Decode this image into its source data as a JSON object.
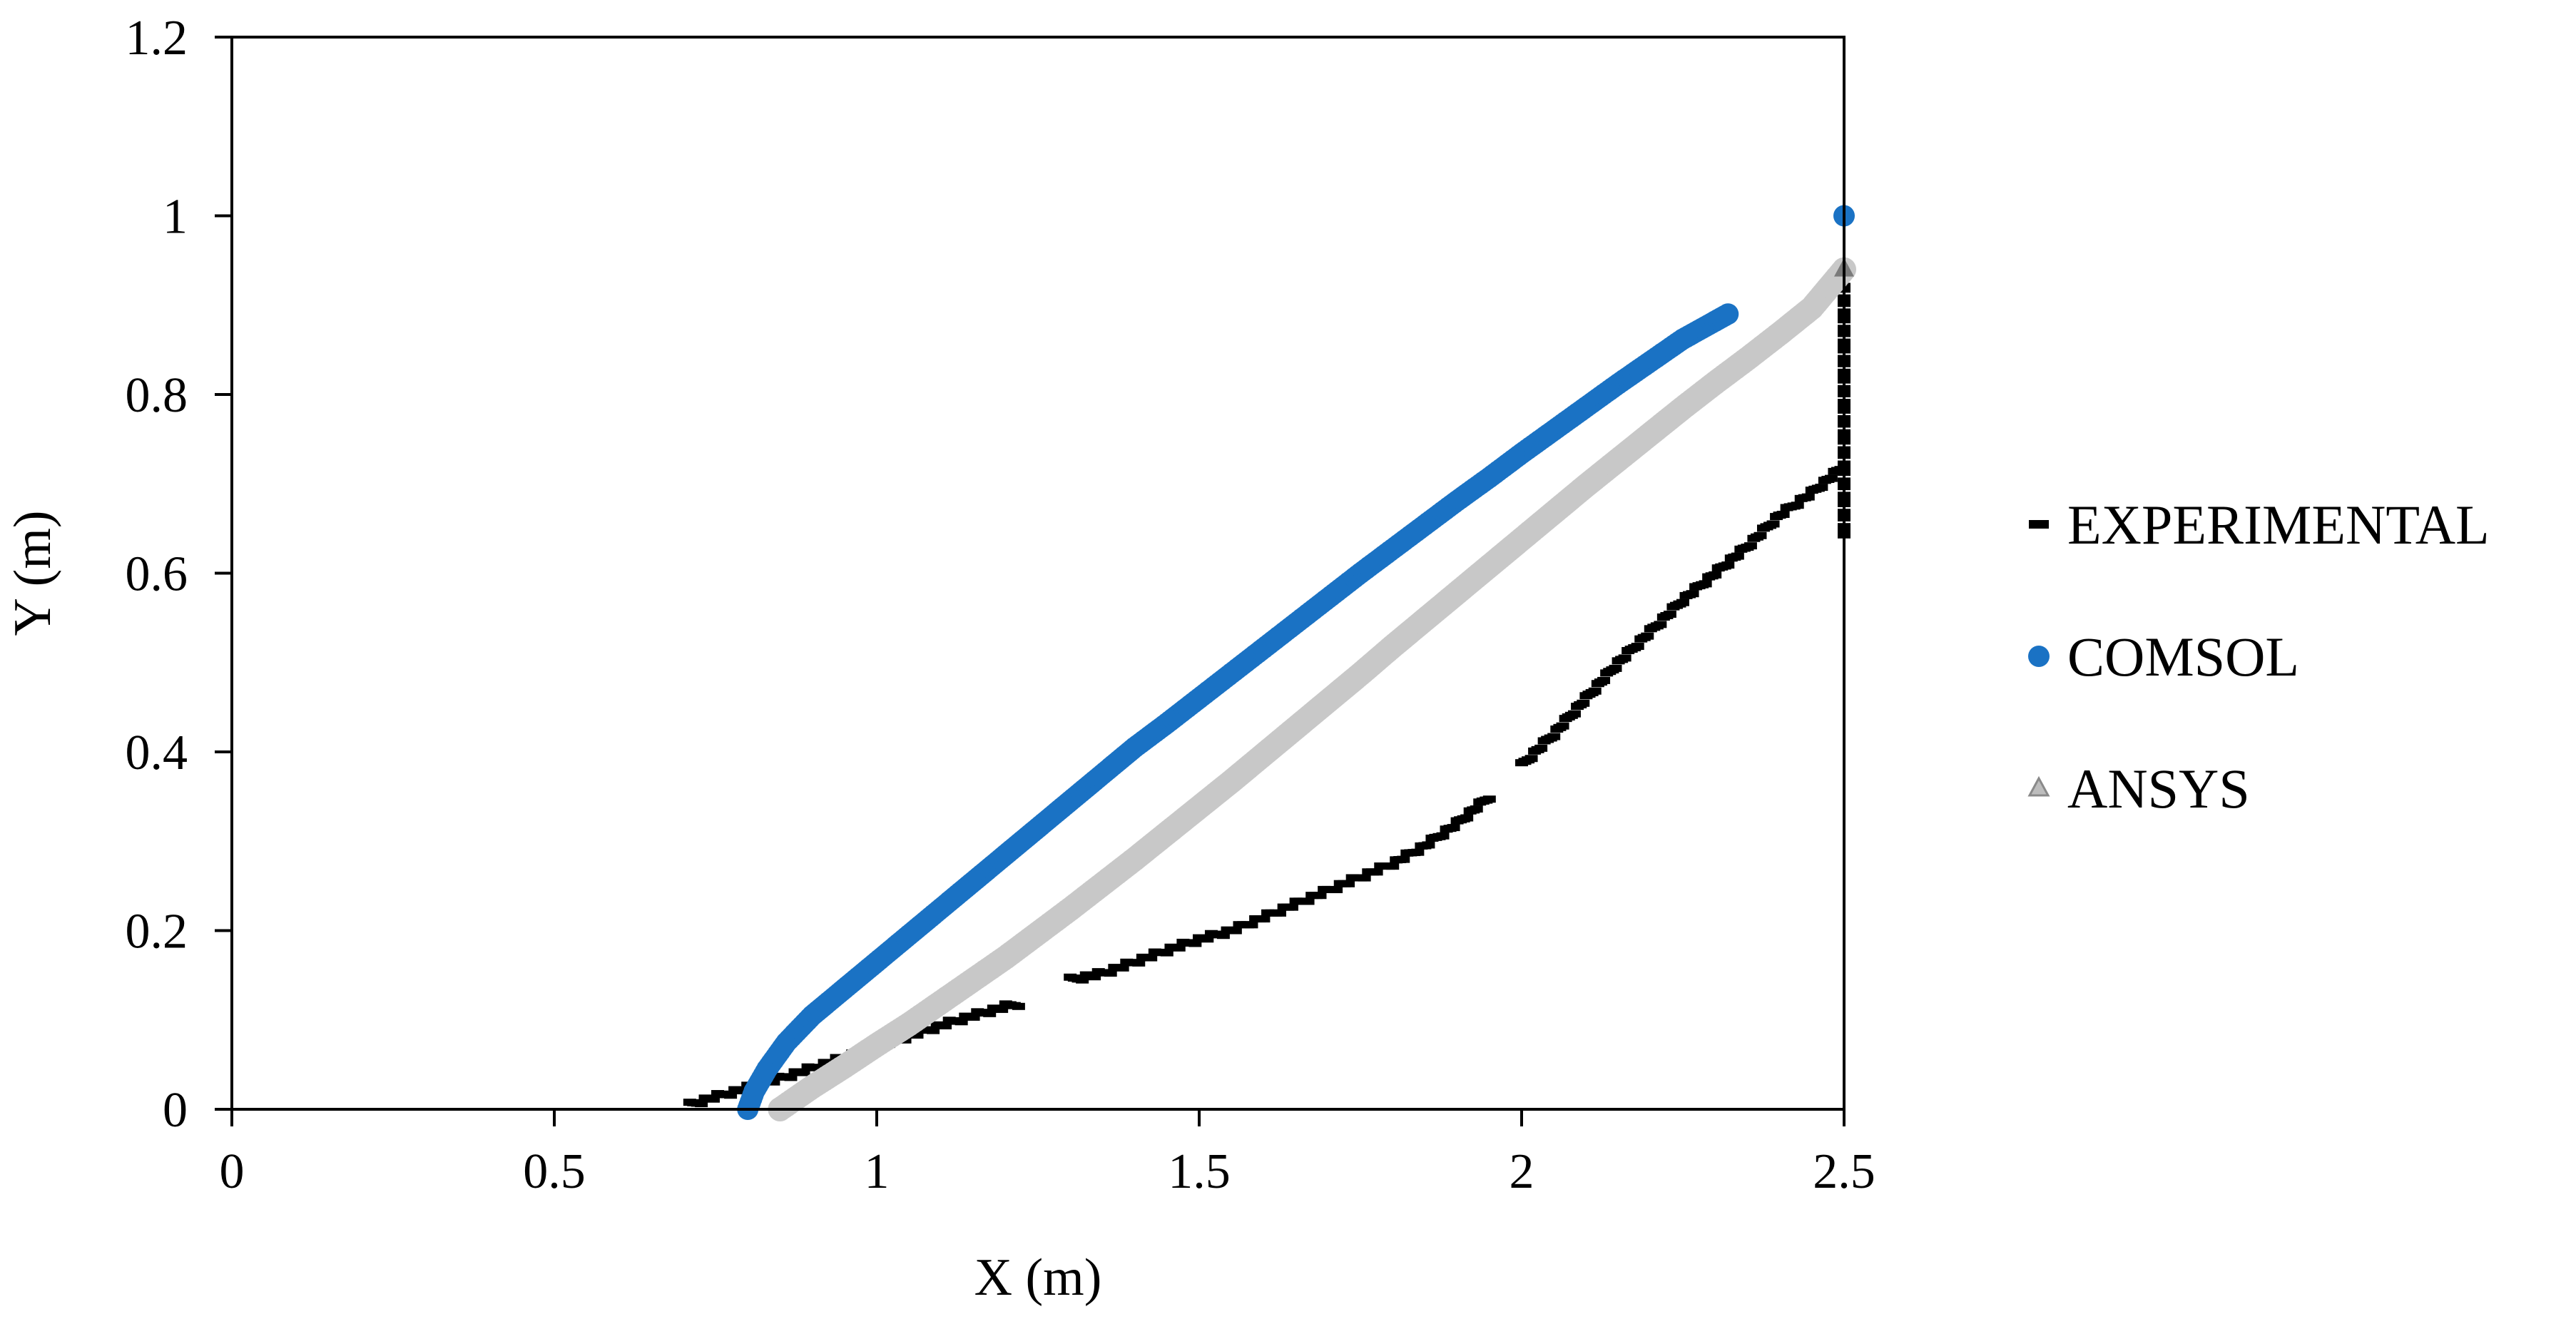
{
  "chart_data": {
    "type": "scatter",
    "xlabel": "X (m)",
    "ylabel": "Y (m)",
    "xlim": [
      0,
      2.5
    ],
    "ylim": [
      0,
      1.2
    ],
    "xticks": [
      0,
      0.5,
      1,
      1.5,
      2,
      2.5
    ],
    "yticks": [
      0,
      0.2,
      0.4,
      0.6,
      0.8,
      1,
      1.2
    ],
    "xtick_labels": [
      "0",
      "0.5",
      "1",
      "1.5",
      "2",
      "2.5"
    ],
    "ytick_labels": [
      "0",
      "0.2",
      "0.4",
      "0.6",
      "0.8",
      "1",
      "1.2"
    ],
    "grid": false,
    "legend_position": "right",
    "series": [
      {
        "name": "EXPERIMENTAL",
        "marker": "dash",
        "color": "#000000",
        "segments": [
          [
            [
              0.71,
              0.005
            ],
            [
              0.74,
              0.012
            ],
            [
              0.78,
              0.02
            ],
            [
              0.82,
              0.028
            ],
            [
              0.86,
              0.037
            ],
            [
              0.9,
              0.046
            ],
            [
              0.95,
              0.058
            ],
            [
              1.0,
              0.07
            ],
            [
              1.05,
              0.082
            ],
            [
              1.1,
              0.094
            ],
            [
              1.15,
              0.105
            ],
            [
              1.2,
              0.115
            ],
            [
              1.22,
              0.118
            ]
          ],
          [
            [
              1.3,
              0.145
            ],
            [
              1.35,
              0.152
            ],
            [
              1.4,
              0.165
            ],
            [
              1.45,
              0.178
            ],
            [
              1.5,
              0.19
            ],
            [
              1.55,
              0.2
            ],
            [
              1.6,
              0.215
            ],
            [
              1.65,
              0.23
            ],
            [
              1.7,
              0.245
            ],
            [
              1.75,
              0.26
            ],
            [
              1.8,
              0.275
            ],
            [
              1.85,
              0.295
            ],
            [
              1.9,
              0.32
            ],
            [
              1.95,
              0.35
            ]
          ],
          [
            [
              2.0,
              0.385
            ],
            [
              2.05,
              0.42
            ],
            [
              2.1,
              0.46
            ],
            [
              2.15,
              0.5
            ],
            [
              2.2,
              0.535
            ],
            [
              2.25,
              0.57
            ],
            [
              2.3,
              0.6
            ],
            [
              2.35,
              0.63
            ],
            [
              2.4,
              0.665
            ],
            [
              2.45,
              0.69
            ],
            [
              2.5,
              0.72
            ]
          ],
          [
            [
              2.5,
              0.64
            ],
            [
              2.5,
              0.68
            ],
            [
              2.5,
              0.72
            ],
            [
              2.5,
              0.77
            ],
            [
              2.5,
              0.9
            ],
            [
              2.5,
              0.92
            ]
          ]
        ]
      },
      {
        "name": "COMSOL",
        "marker": "circle",
        "color": "#1a72c4",
        "x": [
          0.8,
          0.81,
          0.83,
          0.86,
          0.9,
          0.95,
          1.0,
          1.05,
          1.1,
          1.15,
          1.2,
          1.25,
          1.3,
          1.35,
          1.4,
          1.45,
          1.5,
          1.55,
          1.6,
          1.65,
          1.7,
          1.75,
          1.8,
          1.85,
          1.9,
          1.95,
          2.0,
          2.05,
          2.1,
          2.15,
          2.2,
          2.25,
          2.3,
          2.32,
          2.5
        ],
        "y": [
          0.0,
          0.02,
          0.045,
          0.075,
          0.105,
          0.135,
          0.165,
          0.195,
          0.225,
          0.255,
          0.285,
          0.315,
          0.345,
          0.375,
          0.405,
          0.432,
          0.46,
          0.488,
          0.516,
          0.544,
          0.572,
          0.6,
          0.627,
          0.654,
          0.681,
          0.707,
          0.734,
          0.76,
          0.786,
          0.812,
          0.837,
          0.862,
          0.882,
          0.89,
          1.0
        ]
      },
      {
        "name": "ANSYS",
        "marker": "triangle",
        "color": "#c8c8c8",
        "x": [
          0.85,
          0.9,
          0.95,
          1.0,
          1.05,
          1.1,
          1.15,
          1.2,
          1.25,
          1.3,
          1.35,
          1.4,
          1.45,
          1.5,
          1.55,
          1.6,
          1.65,
          1.7,
          1.75,
          1.8,
          1.85,
          1.9,
          1.95,
          2.0,
          2.05,
          2.1,
          2.15,
          2.2,
          2.25,
          2.3,
          2.35,
          2.4,
          2.45,
          2.5
        ],
        "y": [
          0.0,
          0.025,
          0.048,
          0.072,
          0.095,
          0.12,
          0.145,
          0.17,
          0.197,
          0.224,
          0.252,
          0.28,
          0.309,
          0.338,
          0.367,
          0.397,
          0.427,
          0.457,
          0.487,
          0.518,
          0.548,
          0.578,
          0.608,
          0.638,
          0.668,
          0.698,
          0.727,
          0.756,
          0.785,
          0.813,
          0.84,
          0.868,
          0.897,
          0.94
        ]
      }
    ]
  }
}
